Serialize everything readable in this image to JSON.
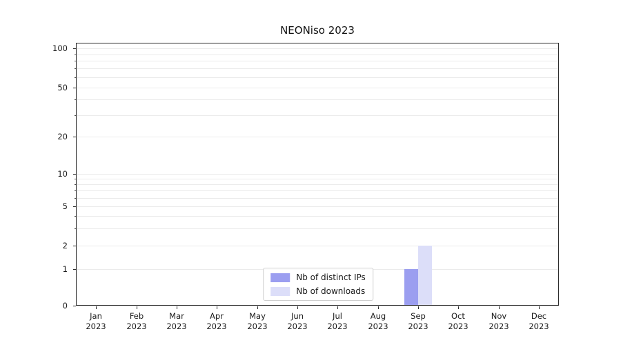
{
  "chart_data": {
    "type": "bar",
    "title": "NEONiso 2023",
    "categories": [
      "Jan 2023",
      "Feb 2023",
      "Mar 2023",
      "Apr 2023",
      "May 2023",
      "Jun 2023",
      "Jul 2023",
      "Aug 2023",
      "Sep 2023",
      "Oct 2023",
      "Nov 2023",
      "Dec 2023"
    ],
    "series": [
      {
        "name": "Nb of distinct IPs",
        "color": "#9b9ef0",
        "values": [
          0,
          0,
          0,
          0,
          0,
          0,
          0,
          0,
          1,
          0,
          0,
          0
        ]
      },
      {
        "name": "Nb of downloads",
        "color": "#dcdef9",
        "values": [
          0,
          0,
          0,
          0,
          0,
          0,
          0,
          0,
          2,
          0,
          0,
          0
        ]
      }
    ],
    "xlabel": "",
    "ylabel": "",
    "yscale": "symlog",
    "ylim": [
      0,
      100
    ],
    "y_ticks": [
      0,
      1,
      2,
      5,
      10,
      20,
      50,
      100
    ],
    "grid": "horizontal-minor",
    "legend_position": "lower center"
  }
}
